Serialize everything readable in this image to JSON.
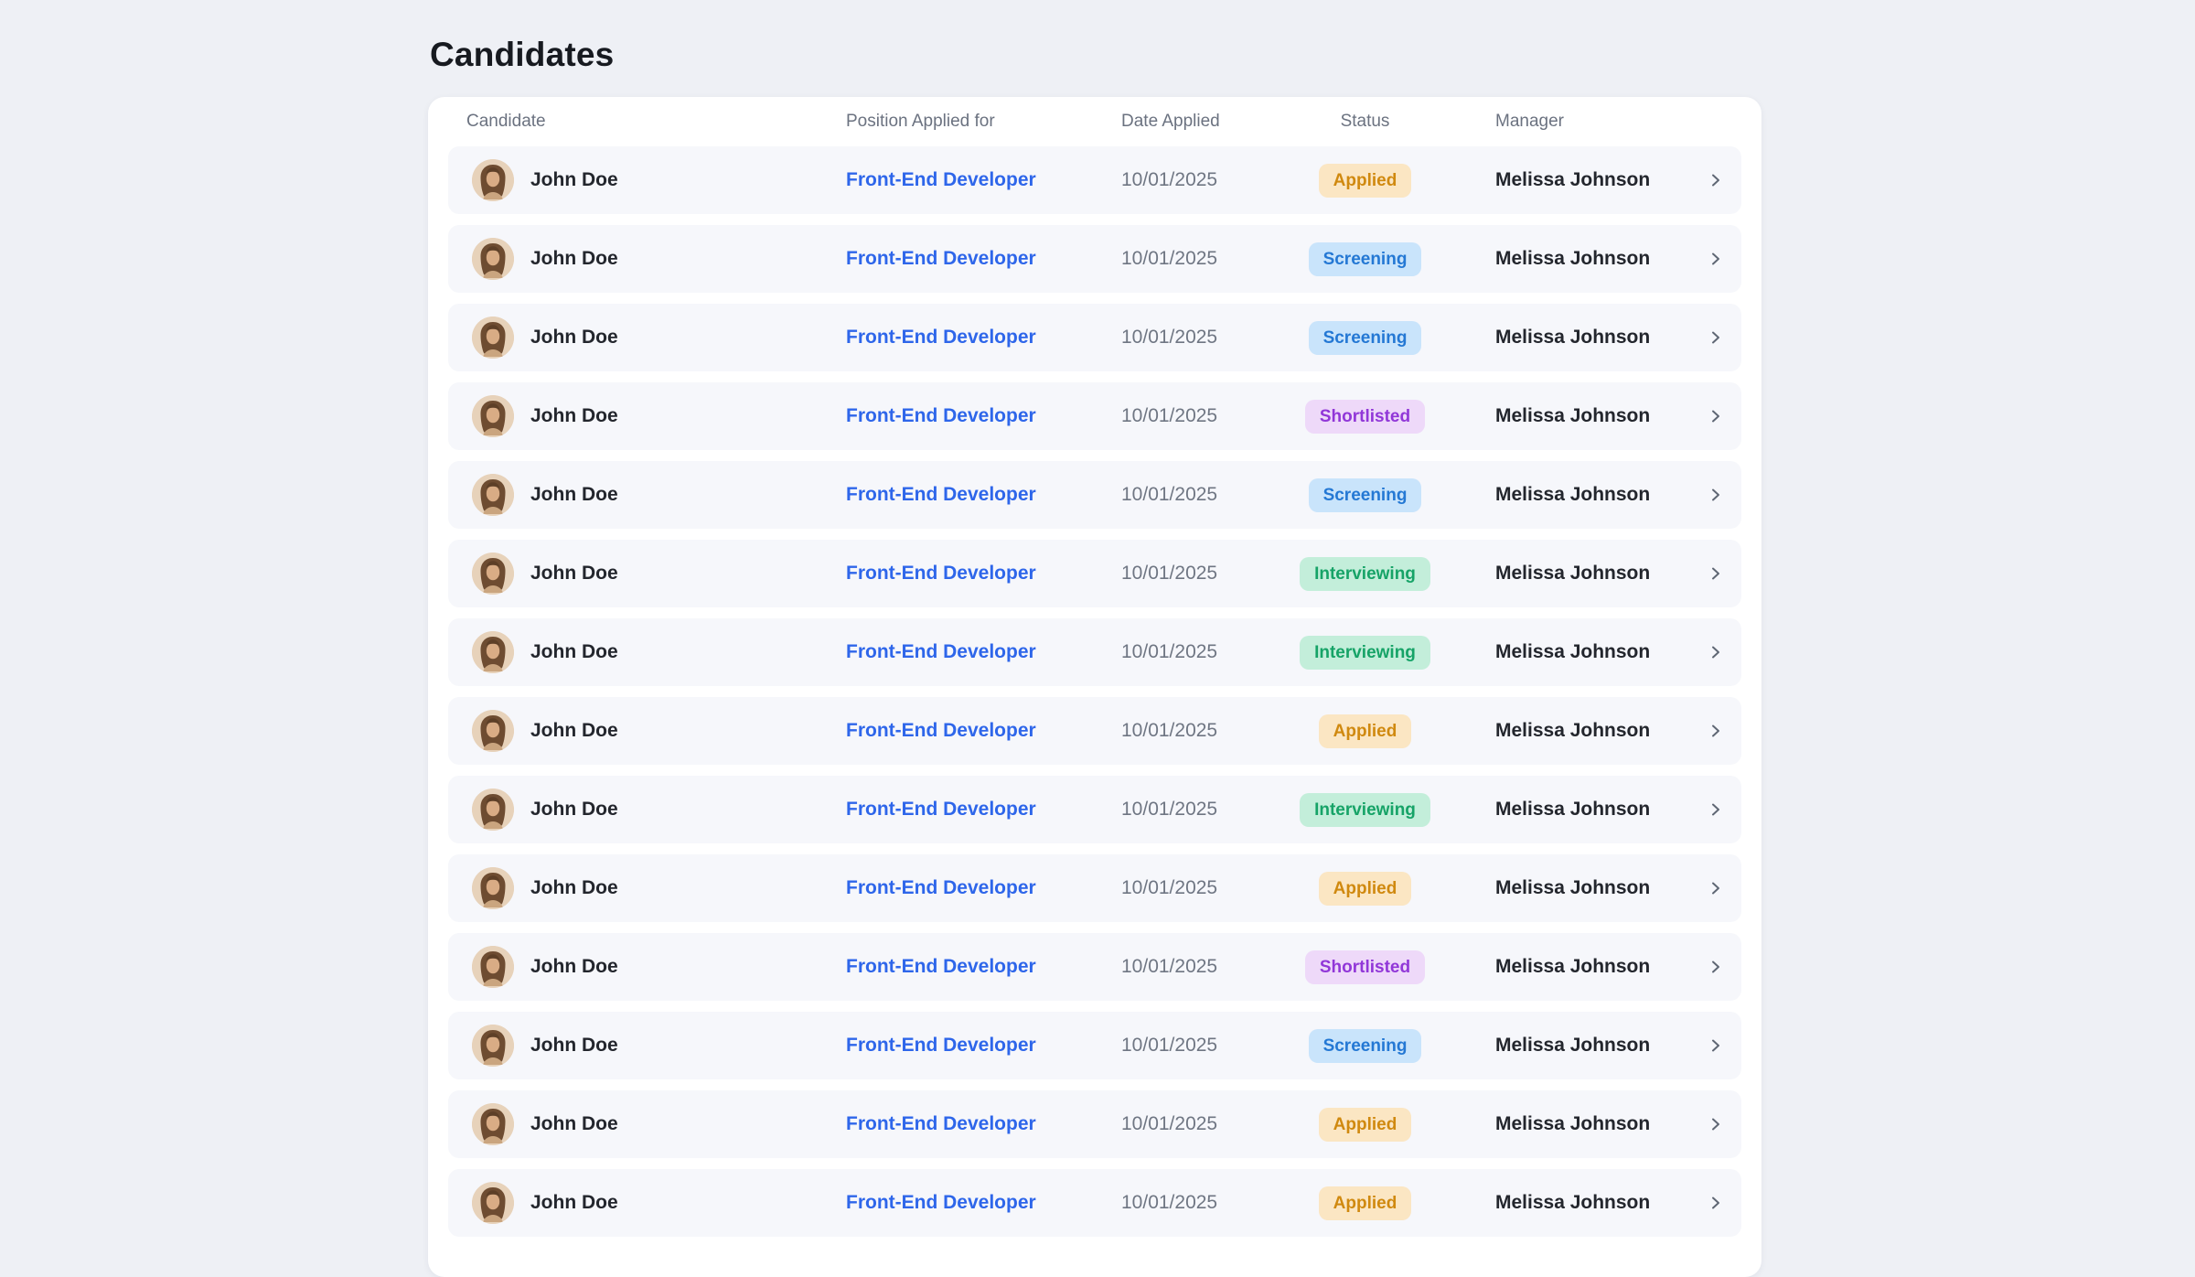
{
  "page": {
    "title": "Candidates"
  },
  "table": {
    "headers": [
      "Candidate",
      "Position Applied for",
      "Date Applied",
      "Status",
      "Manager"
    ],
    "rows": [
      {
        "candidate": "John Doe",
        "position": "Front-End Developer",
        "date": "10/01/2025",
        "status": "Applied",
        "manager": "Melissa Johnson"
      },
      {
        "candidate": "John Doe",
        "position": "Front-End Developer",
        "date": "10/01/2025",
        "status": "Screening",
        "manager": "Melissa Johnson"
      },
      {
        "candidate": "John Doe",
        "position": "Front-End Developer",
        "date": "10/01/2025",
        "status": "Screening",
        "manager": "Melissa Johnson"
      },
      {
        "candidate": "John Doe",
        "position": "Front-End Developer",
        "date": "10/01/2025",
        "status": "Shortlisted",
        "manager": "Melissa Johnson"
      },
      {
        "candidate": "John Doe",
        "position": "Front-End Developer",
        "date": "10/01/2025",
        "status": "Screening",
        "manager": "Melissa Johnson"
      },
      {
        "candidate": "John Doe",
        "position": "Front-End Developer",
        "date": "10/01/2025",
        "status": "Interviewing",
        "manager": "Melissa Johnson"
      },
      {
        "candidate": "John Doe",
        "position": "Front-End Developer",
        "date": "10/01/2025",
        "status": "Interviewing",
        "manager": "Melissa Johnson"
      },
      {
        "candidate": "John Doe",
        "position": "Front-End Developer",
        "date": "10/01/2025",
        "status": "Applied",
        "manager": "Melissa Johnson"
      },
      {
        "candidate": "John Doe",
        "position": "Front-End Developer",
        "date": "10/01/2025",
        "status": "Interviewing",
        "manager": "Melissa Johnson"
      },
      {
        "candidate": "John Doe",
        "position": "Front-End Developer",
        "date": "10/01/2025",
        "status": "Applied",
        "manager": "Melissa Johnson"
      },
      {
        "candidate": "John Doe",
        "position": "Front-End Developer",
        "date": "10/01/2025",
        "status": "Shortlisted",
        "manager": "Melissa Johnson"
      },
      {
        "candidate": "John Doe",
        "position": "Front-End Developer",
        "date": "10/01/2025",
        "status": "Screening",
        "manager": "Melissa Johnson"
      },
      {
        "candidate": "John Doe",
        "position": "Front-End Developer",
        "date": "10/01/2025",
        "status": "Applied",
        "manager": "Melissa Johnson"
      },
      {
        "candidate": "John Doe",
        "position": "Front-End Developer",
        "date": "10/01/2025",
        "status": "Applied",
        "manager": "Melissa Johnson"
      }
    ],
    "row_icon": "chevron-right"
  },
  "status_styles": {
    "Applied": {
      "bg": "#fbe6c3",
      "fg": "#d0890f"
    },
    "Screening": {
      "bg": "#c9e4fb",
      "fg": "#2478d4"
    },
    "Shortlisted": {
      "bg": "#eed9f9",
      "fg": "#9137d8"
    },
    "Interviewing": {
      "bg": "#c3eeda",
      "fg": "#16a367"
    }
  },
  "colors": {
    "page_bg": "#eef0f5",
    "card_bg": "#ffffff",
    "row_bg": "#f6f7fb",
    "title_text": "#171a20",
    "header_text": "#6b7280",
    "primary_text": "#23262d",
    "secondary_text": "#6f7683",
    "link": "#2e66ea",
    "chevron": "#5f6774"
  }
}
